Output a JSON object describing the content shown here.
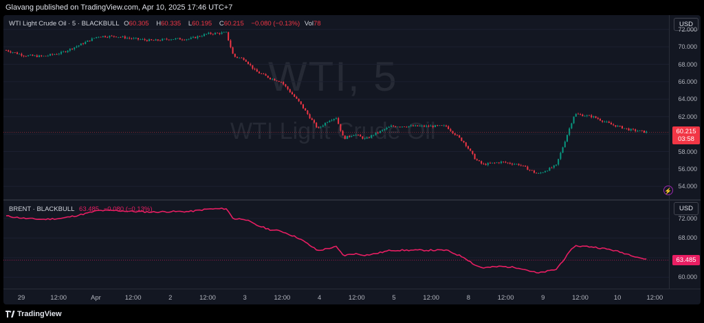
{
  "header": {
    "publish_text": "Glavang published on TradingView.com, Apr 10, 2025 17:46 UTC+7"
  },
  "main_pane": {
    "legend": {
      "symbol": "WTI Light Crude Oil · 5 · BLACKBULL",
      "open_label": "O",
      "open": "60.305",
      "high_label": "H",
      "high": "60.335",
      "low_label": "L",
      "low": "60.195",
      "close_label": "C",
      "close": "60.215",
      "change": "−0.080 (−0.13%)",
      "vol_label": "Vol",
      "vol": "78"
    },
    "watermark_symbol": "WTI, 5",
    "watermark_name": "WTI Light Crude Oil",
    "currency": "USD",
    "price_ticks": [
      "72.000",
      "70.000",
      "68.000",
      "66.000",
      "64.000",
      "62.000",
      "60.000",
      "58.000",
      "56.000",
      "54.000"
    ],
    "last_price": "60.215",
    "countdown": "03:58",
    "alert_icon": "lightning-alert-icon",
    "colors": {
      "up": "#089981",
      "down": "#f23645"
    }
  },
  "brent_pane": {
    "legend": {
      "symbol": "BRENT · BLACKBULL",
      "value": "63.485",
      "change": "−0.080 (−0.13%)"
    },
    "currency": "USD",
    "price_ticks": [
      "72.000",
      "68.000",
      "64.000",
      "60.000"
    ],
    "last_price": "63.485",
    "color": "#e91e63"
  },
  "time_axis": {
    "labels": [
      "29",
      "12:00",
      "Apr",
      "12:00",
      "2",
      "12:00",
      "3",
      "12:00",
      "4",
      "12:00",
      "5",
      "12:00",
      "8",
      "12:00",
      "9",
      "12:00",
      "10",
      "12:00"
    ]
  },
  "footer": {
    "brand": "TradingView",
    "logo_icon": "tradingview-logo-icon"
  },
  "chart_data": [
    {
      "type": "line",
      "title": "WTI Light Crude Oil · 5 · BLACKBULL",
      "ylim": [
        53,
        73
      ],
      "x": [
        0,
        5,
        10,
        15,
        20,
        25,
        30,
        35,
        40,
        45,
        50,
        55,
        60,
        62,
        65,
        68,
        72,
        75,
        80,
        85,
        88,
        90,
        92,
        95,
        98,
        100,
        105,
        110,
        115,
        120,
        125,
        128,
        130,
        135,
        140,
        145,
        150,
        155,
        160,
        165,
        170,
        175
      ],
      "series": [
        {
          "values": [
            69.6,
            69.0,
            68.9,
            69.3,
            70.2,
            71.2,
            71.2,
            70.9,
            70.7,
            70.9,
            70.9,
            71.5,
            71.6,
            68.9,
            68.6,
            67.2,
            66.4,
            66.0,
            63.6,
            60.6,
            61.6,
            61.9,
            59.5,
            60.0,
            59.4,
            59.9,
            60.9,
            60.9,
            60.9,
            60.9,
            59.0,
            57.1,
            56.5,
            56.8,
            56.5,
            55.4,
            56.4,
            62.3,
            62.0,
            61.1,
            60.5,
            60.2
          ]
        }
      ]
    },
    {
      "type": "line",
      "title": "BRENT · BLACKBULL",
      "ylim": [
        58.5,
        74.5
      ],
      "x": [
        0,
        5,
        10,
        15,
        20,
        25,
        30,
        35,
        40,
        45,
        50,
        55,
        60,
        62,
        65,
        68,
        72,
        75,
        80,
        85,
        88,
        90,
        92,
        95,
        98,
        100,
        105,
        110,
        115,
        120,
        125,
        128,
        130,
        135,
        140,
        145,
        150,
        155,
        160,
        165,
        170,
        175
      ],
      "series": [
        {
          "name": "BRENT · BLACKBULL",
          "values": [
            72.5,
            72.0,
            71.8,
            72.0,
            72.7,
            73.6,
            73.6,
            73.4,
            73.3,
            73.4,
            73.4,
            73.9,
            74.0,
            71.9,
            71.9,
            70.7,
            69.7,
            69.4,
            67.9,
            65.4,
            65.9,
            66.2,
            64.4,
            64.8,
            64.5,
            64.7,
            65.5,
            65.5,
            65.5,
            65.5,
            64.0,
            62.4,
            61.9,
            62.2,
            61.9,
            60.8,
            61.6,
            66.4,
            66.2,
            65.6,
            64.6,
            63.5
          ]
        }
      ]
    }
  ]
}
